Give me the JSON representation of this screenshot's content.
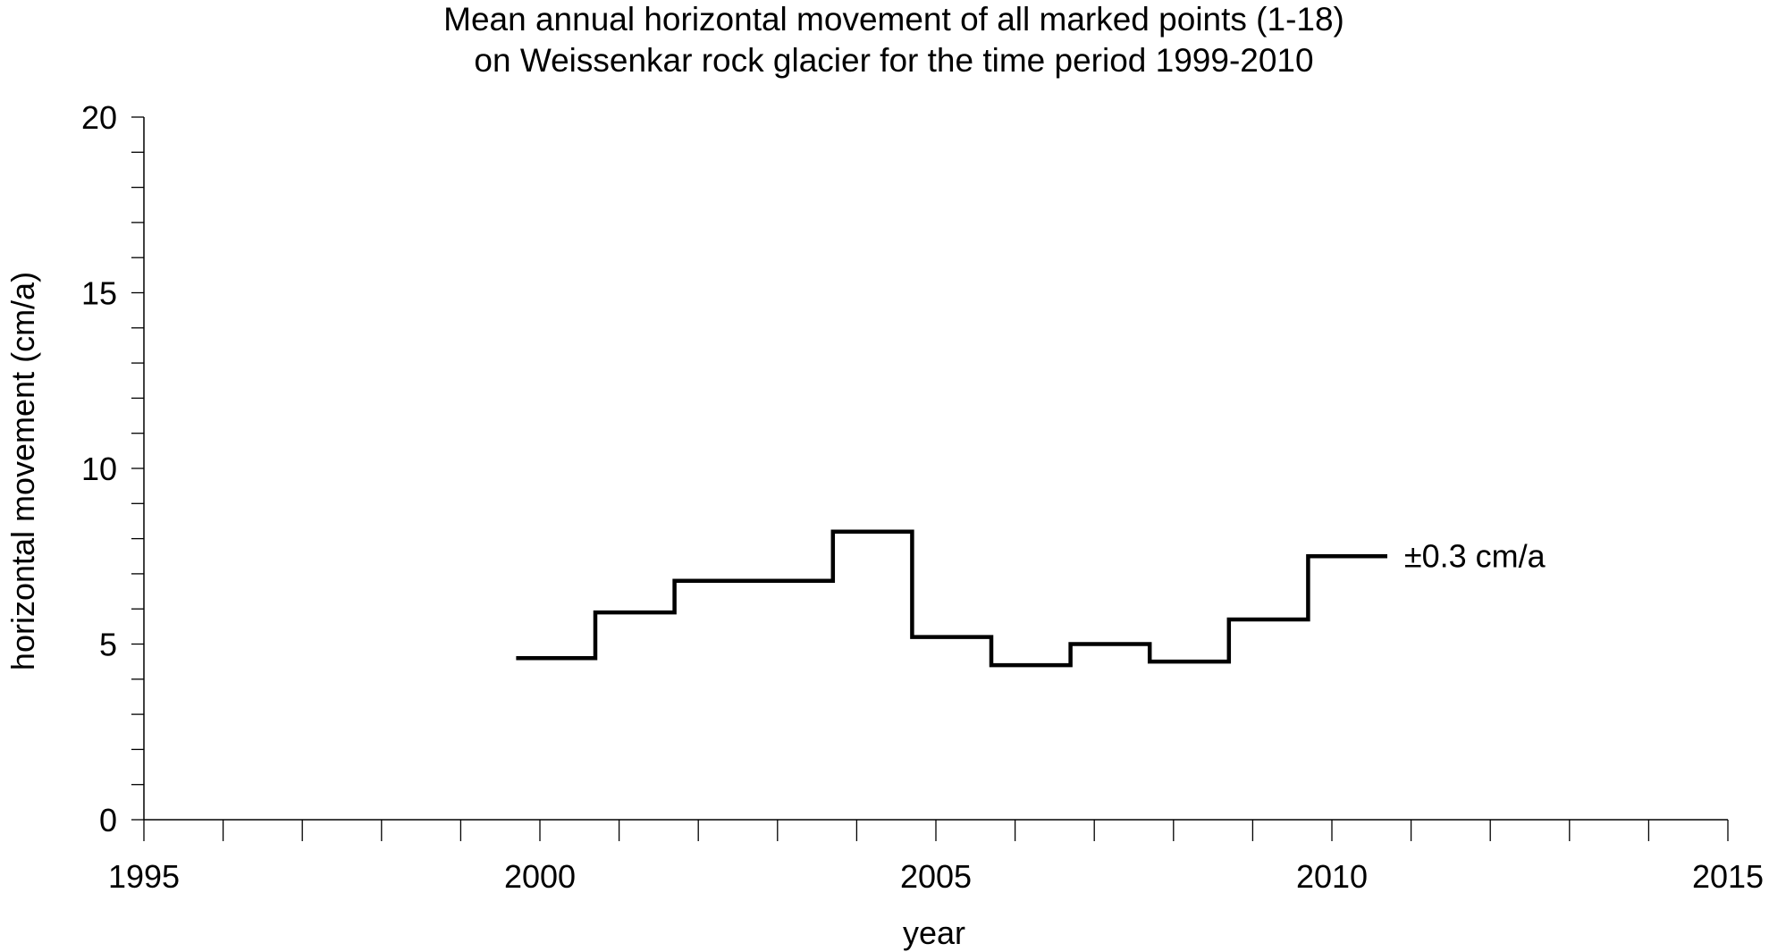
{
  "chart_data": {
    "type": "line",
    "step": true,
    "title_lines": [
      "Mean annual horizontal movement of all marked points (1-18)",
      "on Weissenkar rock glacier for the time period 1999-2010"
    ],
    "xlabel": "year",
    "ylabel": "horizontal movement (cm/a)",
    "xlim": [
      1995,
      2015
    ],
    "ylim": [
      0,
      20
    ],
    "x_ticks": [
      1995,
      2000,
      2005,
      2010,
      2015
    ],
    "y_ticks": [
      0,
      5,
      10,
      15,
      20
    ],
    "grid": false,
    "legend": "none",
    "series": [
      {
        "periods": [
          {
            "from": 1999.7,
            "to": 2000.7,
            "value": 4.6
          },
          {
            "from": 2000.7,
            "to": 2001.7,
            "value": 5.9
          },
          {
            "from": 2001.7,
            "to": 2003.7,
            "value": 6.8
          },
          {
            "from": 2003.7,
            "to": 2004.7,
            "value": 8.2
          },
          {
            "from": 2004.7,
            "to": 2005.7,
            "value": 5.2
          },
          {
            "from": 2005.7,
            "to": 2006.7,
            "value": 4.4
          },
          {
            "from": 2006.7,
            "to": 2007.7,
            "value": 5.0
          },
          {
            "from": 2007.7,
            "to": 2008.7,
            "value": 4.5
          },
          {
            "from": 2008.7,
            "to": 2009.7,
            "value": 5.7
          },
          {
            "from": 2009.7,
            "to": 2010.7,
            "value": 7.5
          }
        ]
      }
    ],
    "annotations": [
      {
        "text": "±0.3 cm/a",
        "x": 2010.8,
        "y": 7.5
      }
    ],
    "colors": {
      "line": "#000000",
      "axis": "#000000"
    }
  }
}
